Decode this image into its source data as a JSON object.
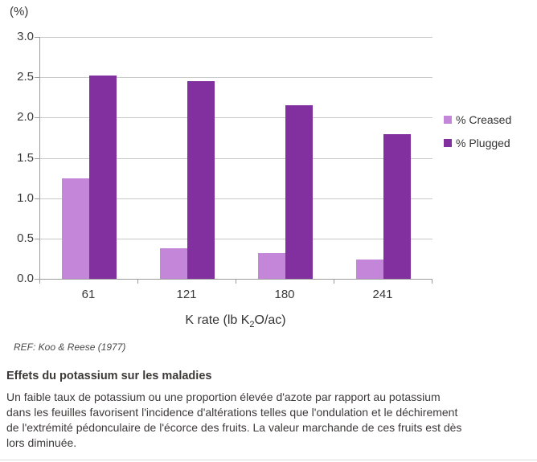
{
  "chart_data": {
    "type": "bar",
    "title": "(%)",
    "xlabel_prefix": "K rate (lb K",
    "xlabel_sub": "2",
    "xlabel_suffix": "O/ac)",
    "categories": [
      "61",
      "121",
      "180",
      "241"
    ],
    "series": [
      {
        "name": "% Creased",
        "color": "#c486d9",
        "values": [
          1.25,
          0.38,
          0.32,
          0.24
        ]
      },
      {
        "name": "% Plugged",
        "color": "#8230a0",
        "values": [
          2.52,
          2.45,
          2.15,
          1.79
        ]
      }
    ],
    "ylim": [
      0,
      3
    ],
    "ytick_step": 0.5,
    "ytick_labels": [
      "0.0",
      "0.5",
      "1.0",
      "1.5",
      "2.0",
      "2.5",
      "3.0"
    ],
    "grid": true,
    "legend_position": "right"
  },
  "reference": "REF: Koo & Reese (1977)",
  "article": {
    "heading": "Effets du potassium sur les maladies",
    "body_lines": [
      "Un faible taux de potassium ou une proportion élevée d'azote par rapport au potassium",
      "dans les feuilles favorisent l'incidence d'altérations telles que l'ondulation et le déchirement",
      "de l'extrémité pédonculaire de l'écorce des fruits. La valeur marchande de ces fruits est dès",
      "lors diminuée."
    ]
  }
}
